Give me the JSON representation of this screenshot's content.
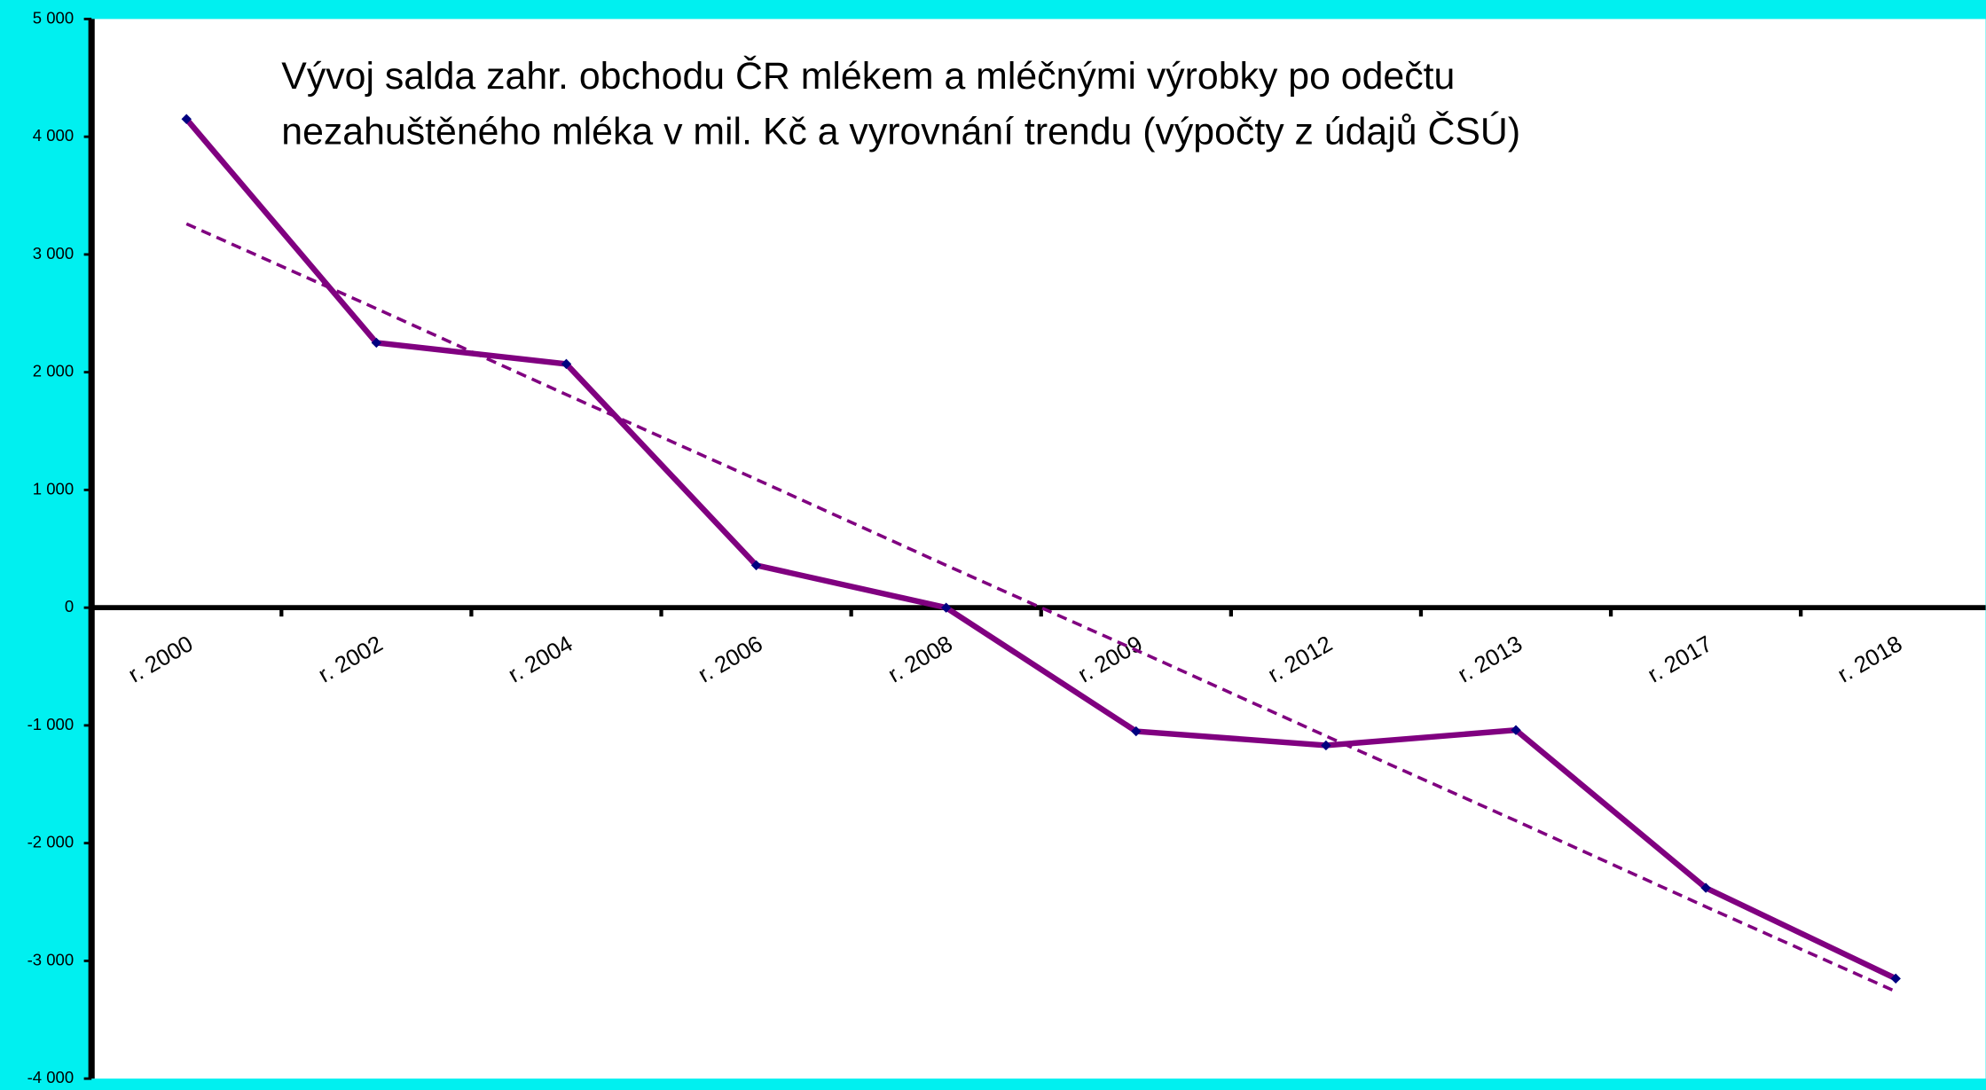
{
  "chart_data": {
    "type": "line",
    "title": [
      "Vývoj salda zahr. obchodu ČR mlékem a mléčnými výrobky po odečtu",
      "nezahuštěného mléka v  mil. Kč a vyrovnání trendu (výpočty z údajů ČSÚ)"
    ],
    "categories": [
      "r. 2000",
      "r. 2002",
      "r. 2004",
      "r. 2006",
      "r. 2008",
      "r. 2009",
      "r. 2012",
      "r. 2013",
      "r. 2017",
      "r. 2018"
    ],
    "series": [
      {
        "color": "#800080",
        "marker_color": "#000080",
        "style": "solid",
        "values": [
          4150,
          2250,
          2070,
          360,
          0,
          -1050,
          -1170,
          -1040,
          -2380,
          -3150
        ]
      },
      {
        "color": "#800080",
        "style": "dashed",
        "values": [
          3260,
          2540,
          1810,
          1090,
          360,
          -360,
          -1090,
          -1810,
          -2540,
          -3260
        ]
      }
    ],
    "ylim": [
      -4000,
      5000
    ],
    "yticks": [
      {
        "value": -4000,
        "label": "-4 000"
      },
      {
        "value": -3000,
        "label": "-3 000"
      },
      {
        "value": -2000,
        "label": "-2 000"
      },
      {
        "value": -1000,
        "label": "-1 000"
      },
      0,
      {
        "value": 1000,
        "label": "1 000"
      },
      {
        "value": 2000,
        "label": "2 000"
      },
      {
        "value": 3000,
        "label": "3 000"
      },
      {
        "value": 4000,
        "label": "4 000"
      },
      {
        "value": 5000,
        "label": "5 000"
      }
    ],
    "grid": false
  }
}
